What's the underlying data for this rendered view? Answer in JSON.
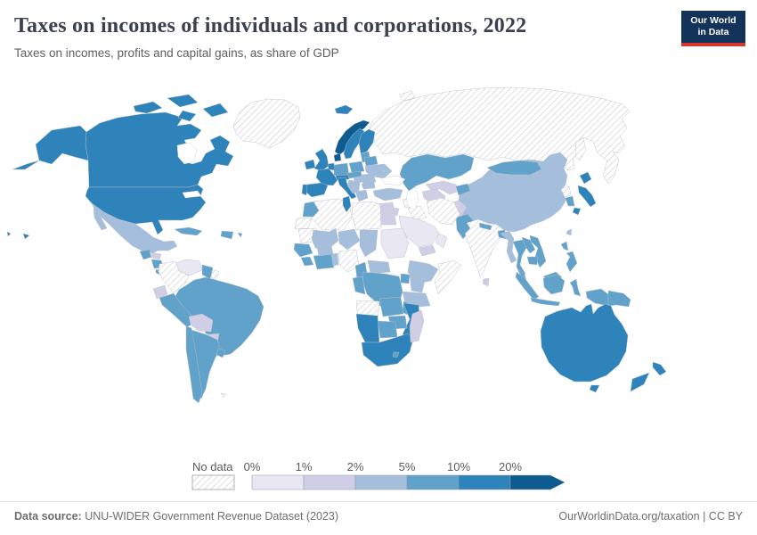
{
  "header": {
    "title": "Taxes on incomes of individuals and corporations, 2022",
    "subtitle": "Taxes on incomes, profits and capital gains, as share of GDP",
    "logo": {
      "line1": "Our World",
      "line2": "in Data",
      "bg_color": "#13335b",
      "accent_color": "#d4382d"
    }
  },
  "legend": {
    "no_data_label": "No data",
    "bins": [
      {
        "label": "0%",
        "key": "0-1",
        "color": "#e8e7f2"
      },
      {
        "label": "1%",
        "key": "1-2",
        "color": "#cfcee5"
      },
      {
        "label": "2%",
        "key": "2-5",
        "color": "#a5bedb"
      },
      {
        "label": "5%",
        "key": "5-10",
        "color": "#61a2ca"
      },
      {
        "label": "10%",
        "key": "10-20",
        "color": "#2e83ba"
      },
      {
        "label": "20%",
        "key": "20+",
        "color": "#0e5c8f"
      }
    ]
  },
  "chart_data": {
    "type": "choropleth-map",
    "title": "Taxes on incomes of individuals and corporations, 2022",
    "subtitle": "Taxes on incomes, profits and capital gains, as share of GDP",
    "unit": "% of GDP",
    "legend_thresholds": [
      "0%",
      "1%",
      "2%",
      "5%",
      "10%",
      "20%"
    ],
    "no_data_label": "No data",
    "legend_position": "bottom"
  },
  "map": {
    "regions": {
      "usa": "10-20",
      "canada": "10-20",
      "mexico": "2-5",
      "guatemala": "5-10",
      "honduras": "1-2",
      "nicaragua": "5-10",
      "costa-rica-panama": "5-10",
      "cuba": "5-10",
      "hispaniola": "5-10",
      "puerto-rico": "5-10",
      "greenland": "no-data",
      "iceland": "10-20",
      "venezuela": "0-1",
      "colombia": "no-data",
      "guyana": "5-10",
      "suriname-guiana": "no-data",
      "ecuador": "1-2",
      "peru": "5-10",
      "brazil": "5-10",
      "bolivia": "1-2",
      "paraguay": "1-2",
      "chile": "5-10",
      "argentina": "5-10",
      "uruguay": "5-10",
      "falkland": "no-data",
      "ireland": "10-20",
      "uk": "10-20",
      "norway": "20+",
      "sweden": "10-20",
      "finland": "10-20",
      "denmark": "20+",
      "baltics": "5-10",
      "germany": "5-10",
      "benelux": "10-20",
      "france": "10-20",
      "spain": "10-20",
      "portugal": "10-20",
      "italy": "10-20",
      "switzerland-austria": "10-20",
      "poland": "5-10",
      "czech-slovakia": "5-10",
      "hungary": "2-5",
      "romania": "2-5",
      "bulgaria": "2-5",
      "balkans": "2-5",
      "greece": "2-5",
      "ukraine": "2-5",
      "belarus": "5-10",
      "russia": "no-data",
      "svalbard": "no-data",
      "sakhalin": "no-data",
      "kazakhstan": "5-10",
      "uzbekistan": "1-2",
      "turkmenistan": "1-2",
      "kyrgyzstan-tajikistan": "5-10",
      "afghanistan": "1-2",
      "pakistan": "5-10",
      "india": "no-data",
      "sri-lanka": "1-2",
      "nepal": "5-10",
      "bangladesh": "5-10",
      "myanmar": "2-5",
      "thailand": "5-10",
      "laos": "5-10",
      "vietnam": "5-10",
      "cambodia": "5-10",
      "malaysia": "5-10",
      "indonesia": "5-10",
      "papua-new-guinea": "5-10",
      "philippines": "5-10",
      "taiwan": "2-5",
      "china": "2-5",
      "mongolia": "5-10",
      "north-korea": "no-data",
      "south-korea": "5-10",
      "japan": "10-20",
      "turkey": "2-5",
      "syria": "no-data",
      "iraq": "no-data",
      "iran": "no-data",
      "israel": "10-20",
      "jordan": "1-2",
      "saudi-arabia": "0-1",
      "yemen": "1-2",
      "oman": "0-1",
      "egypt": "1-2",
      "morocco": "5-10",
      "western-sahara": "no-data",
      "algeria": "no-data",
      "tunisia": "10-20",
      "libya": "no-data",
      "mauritania": "no-data",
      "mali": "2-5",
      "niger": "2-5",
      "chad": "2-5",
      "sudan": "0-1",
      "senegal-guinea": "5-10",
      "sierra-liberia": "5-10",
      "ivory-coast-ghana": "5-10",
      "burkina-faso": "2-5",
      "togo-benin": "2-5",
      "nigeria": "no-data",
      "cameroon": "5-10",
      "central-african-republic": "2-5",
      "ethiopia": "2-5",
      "somalia": "no-data",
      "kenya": "2-5",
      "uganda": "5-10",
      "tanzania": "2-5",
      "drc": "5-10",
      "gabon-congo": "5-10",
      "angola": "no-data",
      "zambia": "5-10",
      "malawi": "5-10",
      "mozambique": "10-20",
      "zimbabwe": "5-10",
      "botswana": "5-10",
      "namibia": "10-20",
      "south-africa": "10-20",
      "lesotho": "5-10",
      "madagascar": "1-2",
      "australia": "10-20",
      "new-zealand": "10-20"
    }
  },
  "footer": {
    "source_label": "Data source:",
    "source_text": " UNU-WIDER Government Revenue Dataset (2023)",
    "link": "OurWorldinData.org/taxation",
    "license": " | CC BY"
  }
}
